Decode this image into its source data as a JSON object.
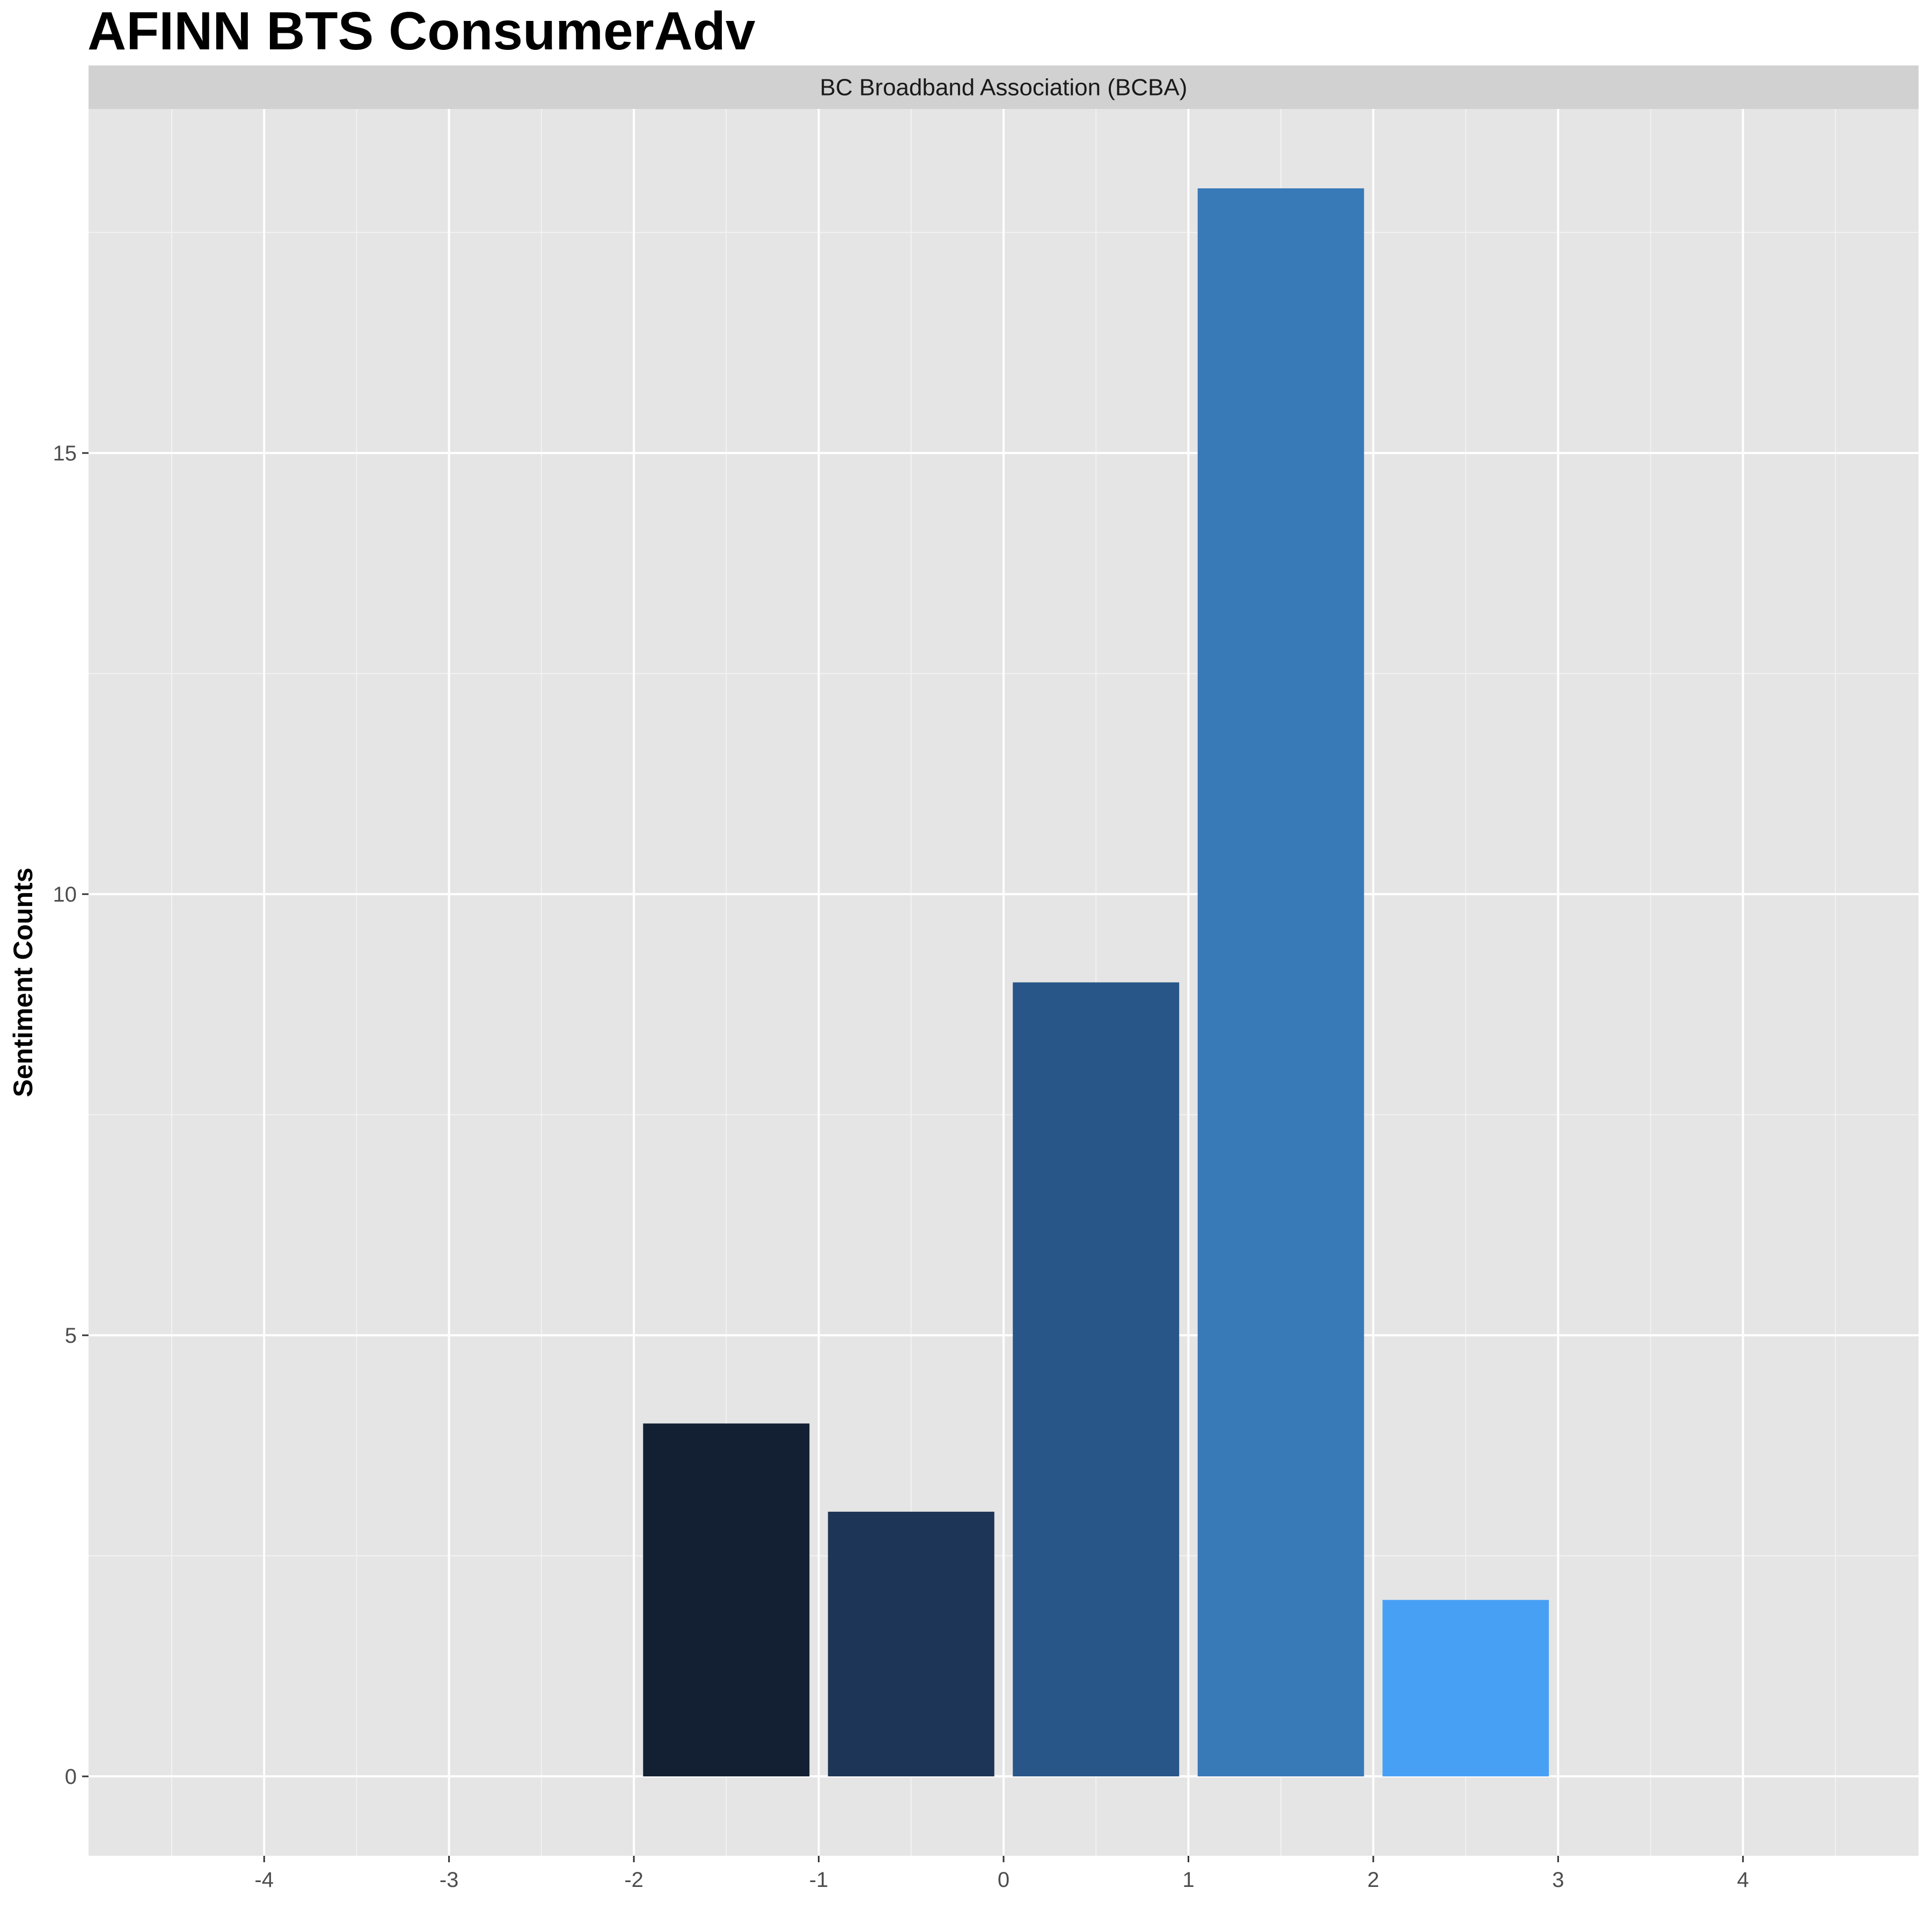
{
  "chart_data": {
    "type": "bar",
    "title": "AFINN BTS ConsumerAdv",
    "facet_label": "BC Broadband Association (BCBA)",
    "xlabel": "",
    "ylabel": "Sentiment Counts",
    "x": [
      -1.5,
      -0.5,
      0.5,
      1.5,
      2.5
    ],
    "values": [
      4,
      3,
      9,
      18,
      2
    ],
    "bar_colors": [
      "#132033",
      "#1d3657",
      "#285688",
      "#3879b8",
      "#48a0f5"
    ],
    "xlim": [
      -4.95,
      4.95
    ],
    "ylim": [
      -0.9,
      18.9
    ],
    "x_ticks": [
      -4,
      -3,
      -2,
      -1,
      0,
      1,
      2,
      3,
      4
    ],
    "y_ticks": [
      0,
      5,
      10,
      15
    ],
    "grid": true,
    "legend": "none",
    "panel_background": "#e5e5e5",
    "strip_background": "#d1d1d1"
  }
}
